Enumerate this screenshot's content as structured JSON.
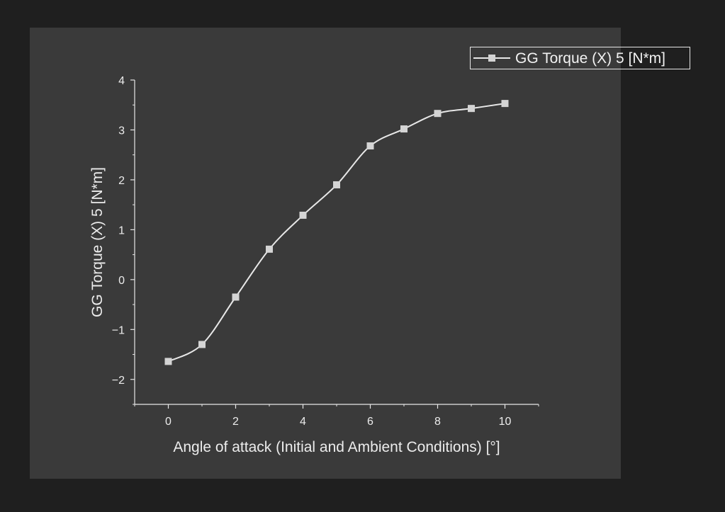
{
  "colors": {
    "page_background": "#1f1f1f",
    "panel_background": "#3a3a3a",
    "axis": "#e6e6e6",
    "series_line": "#e8e8e8",
    "marker": "#d4d4d4",
    "text": "#ececec"
  },
  "chart_data": {
    "type": "line",
    "title": "",
    "xlabel": "Angle of attack (Initial and Ambient Conditions) [°]",
    "ylabel": "GG Torque (X) 5 [N*m]",
    "xlim": [
      -1,
      11
    ],
    "ylim": [
      -2.5,
      4
    ],
    "x_ticks": [
      0,
      2,
      4,
      6,
      8,
      10
    ],
    "x_tick_labels": [
      "0",
      "2",
      "4",
      "6",
      "8",
      "10"
    ],
    "y_ticks": [
      -2,
      -1,
      0,
      1,
      2,
      3,
      4
    ],
    "y_tick_labels": [
      "−2",
      "−1",
      "0",
      "1",
      "2",
      "3",
      "4"
    ],
    "grid": false,
    "legend_position": "top-right",
    "line_style": "smooth",
    "marker": "square",
    "series": [
      {
        "name": "GG Torque (X) 5 [N*m]",
        "x": [
          0,
          1,
          2,
          3,
          4,
          5,
          6,
          7,
          8,
          9,
          10
        ],
        "y": [
          -1.64,
          -1.3,
          -0.35,
          0.61,
          1.29,
          1.9,
          2.68,
          3.02,
          3.33,
          3.43,
          3.53
        ]
      }
    ]
  }
}
